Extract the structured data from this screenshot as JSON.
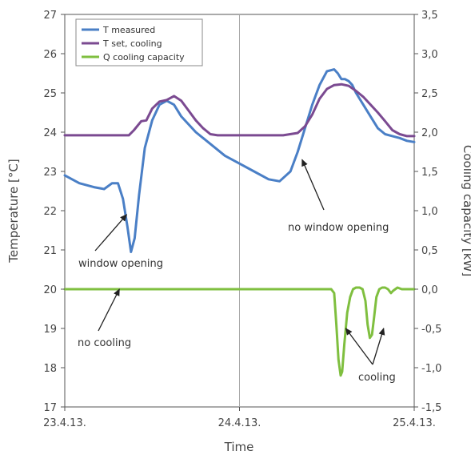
{
  "chart_data": {
    "type": "line",
    "xlabel": "Time",
    "ylabel_left": "Temperature [°C]",
    "ylabel_right": "Cooling capacity [kW]",
    "x_tick_labels": [
      "23.4.13.",
      "24.4.13.",
      "25.4.13."
    ],
    "xlim": [
      0,
      48
    ],
    "ylim_left": [
      17,
      27
    ],
    "ylim_right": [
      -1.5,
      3.5
    ],
    "yticks_left": [
      "17",
      "18",
      "19",
      "20",
      "21",
      "22",
      "23",
      "24",
      "25",
      "26",
      "27"
    ],
    "yticks_right": [
      "-1,5",
      "-1,0",
      "-0,5",
      "0,0",
      "0,5",
      "1,0",
      "1,5",
      "2,0",
      "2,5",
      "3,0",
      "3,5"
    ],
    "grid": "vertical at 24.4.13.",
    "legend_position": "top-left",
    "series": [
      {
        "name": "T measured",
        "axis": "left",
        "color": "#4a7fc6",
        "x": [
          0,
          2,
          4,
          5.4,
          6.5,
          7.3,
          8,
          8.6,
          9.1,
          9.6,
          10.2,
          11,
          12,
          13,
          14,
          15,
          16,
          18,
          20,
          22,
          24,
          26,
          28,
          29.5,
          31,
          32,
          33,
          34,
          35,
          36,
          37,
          37.5,
          38,
          38.5,
          39,
          39.5,
          40,
          41,
          42,
          43,
          44,
          45,
          46,
          47,
          48
        ],
        "values": [
          22.9,
          22.7,
          22.6,
          22.55,
          22.7,
          22.7,
          22.3,
          21.6,
          20.95,
          21.3,
          22.4,
          23.6,
          24.3,
          24.7,
          24.8,
          24.7,
          24.4,
          24.0,
          23.7,
          23.4,
          23.2,
          23.0,
          22.8,
          22.75,
          23.0,
          23.5,
          24.1,
          24.7,
          25.2,
          25.55,
          25.6,
          25.5,
          25.35,
          25.35,
          25.3,
          25.2,
          25.0,
          24.7,
          24.4,
          24.1,
          23.95,
          23.9,
          23.85,
          23.78,
          23.75
        ]
      },
      {
        "name": "T set, cooling",
        "axis": "left",
        "color": "#7b4a91",
        "x": [
          0,
          6,
          8.8,
          9.5,
          10.5,
          11.2,
          12,
          13,
          14,
          15,
          16,
          17,
          18,
          19,
          20,
          21,
          22,
          26,
          30,
          32,
          33,
          34,
          35,
          36,
          37,
          38,
          39,
          40,
          41,
          42,
          43,
          44,
          45,
          46,
          47,
          48
        ],
        "values": [
          23.92,
          23.92,
          23.92,
          24.05,
          24.28,
          24.3,
          24.6,
          24.78,
          24.82,
          24.92,
          24.8,
          24.55,
          24.3,
          24.1,
          23.95,
          23.92,
          23.92,
          23.92,
          23.92,
          23.98,
          24.15,
          24.45,
          24.85,
          25.1,
          25.2,
          25.22,
          25.18,
          25.05,
          24.9,
          24.7,
          24.5,
          24.28,
          24.05,
          23.95,
          23.9,
          23.9
        ]
      },
      {
        "name": "Q cooling capacity",
        "axis": "right",
        "color": "#7fbf3f",
        "x": [
          0,
          36.6,
          37.0,
          37.3,
          37.6,
          37.9,
          38.1,
          38.4,
          38.8,
          39.2,
          39.6,
          40.0,
          40.5,
          40.9,
          41.3,
          41.6,
          41.9,
          42.2,
          42.5,
          42.8,
          43.2,
          43.6,
          44.0,
          44.4,
          44.8,
          45.1,
          45.4,
          45.7,
          46.0,
          46.3,
          48
        ],
        "values": [
          0,
          0,
          -0.05,
          -0.45,
          -0.9,
          -1.1,
          -1.05,
          -0.7,
          -0.3,
          -0.1,
          0,
          0.02,
          0.02,
          0,
          -0.15,
          -0.45,
          -0.62,
          -0.58,
          -0.35,
          -0.1,
          0,
          0.02,
          0.02,
          0,
          -0.05,
          -0.02,
          0,
          0.02,
          0.01,
          0,
          0
        ]
      }
    ],
    "annotations": [
      {
        "text": "window opening",
        "data": [
          8.5,
          21.9
        ],
        "axis": "left"
      },
      {
        "text": "no window opening",
        "data": [
          32.6,
          23.3
        ],
        "axis": "left"
      },
      {
        "text": "no cooling",
        "data": [
          7.5,
          0.0
        ],
        "axis": "right"
      },
      {
        "text": "cooling",
        "data": [
          38.6,
          -0.5
        ],
        "axis": "right"
      },
      {
        "text": "cooling",
        "data": [
          43.8,
          -0.5
        ],
        "axis": "right"
      }
    ]
  }
}
